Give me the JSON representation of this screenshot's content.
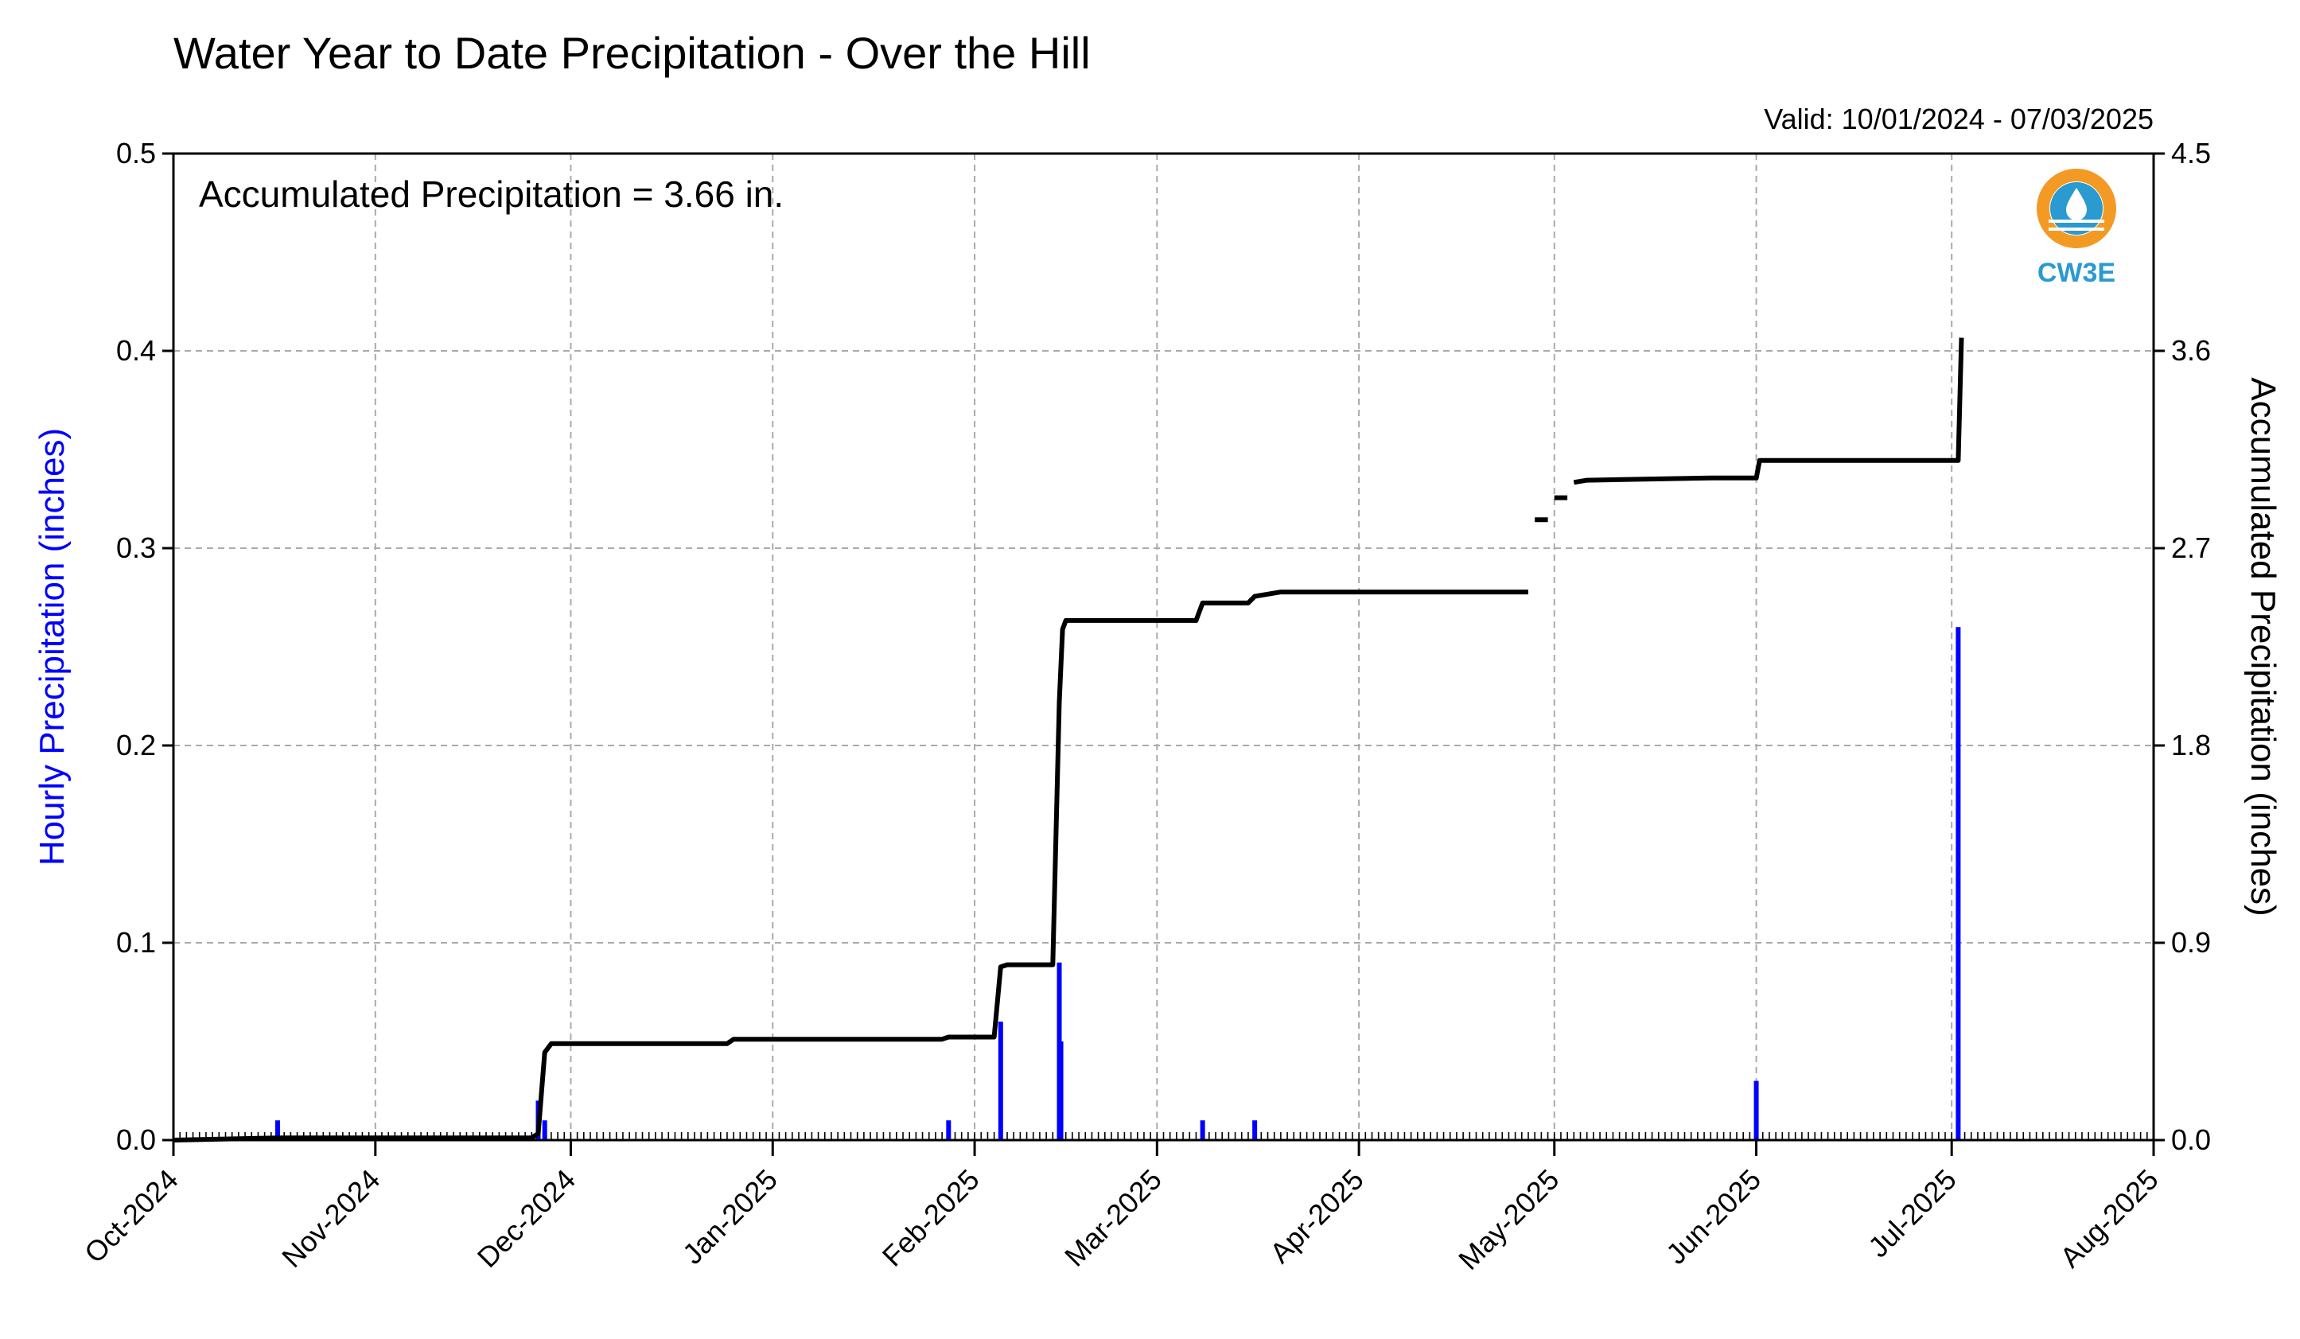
{
  "chart_data": {
    "type": "bar",
    "title": "Water Year to Date Precipitation - Over the Hill",
    "valid_text": "Valid: 10/01/2024 - 07/03/2025",
    "annotation": "Accumulated Precipitation = 3.66 in.",
    "logo_text": "CW3E",
    "ylabel_left": "Hourly Precipitation (inches)",
    "ylabel_right": "Accumulated Precipitation (inches)",
    "x_start": "2024-10-01",
    "x_end": "2025-08-01",
    "x_tick_labels": [
      "Oct-2024",
      "Nov-2024",
      "Dec-2024",
      "Jan-2025",
      "Feb-2025",
      "Mar-2025",
      "Apr-2025",
      "May-2025",
      "Jun-2025",
      "Jul-2025",
      "Aug-2025"
    ],
    "x_tick_dates": [
      "2024-10-01",
      "2024-11-01",
      "2024-12-01",
      "2025-01-01",
      "2025-02-01",
      "2025-03-01",
      "2025-04-01",
      "2025-05-01",
      "2025-06-01",
      "2025-07-01",
      "2025-08-01"
    ],
    "ylim_left": [
      0,
      0.5
    ],
    "ylim_right": [
      0,
      4.5
    ],
    "yticks_left": [
      "0.0",
      "0.1",
      "0.2",
      "0.3",
      "0.4",
      "0.5"
    ],
    "yticks_right": [
      "0.0",
      "0.9",
      "1.8",
      "2.7",
      "3.6",
      "4.5"
    ],
    "grid": true,
    "colors": {
      "hourly": "#0000ff",
      "accumulated": "#000000",
      "grid": "#aaaaaa",
      "logo_orange": "#f39a24",
      "logo_blue": "#2a9ad0"
    },
    "series": [
      {
        "name": "Hourly Precipitation",
        "axis": "left",
        "kind": "bar",
        "points": [
          [
            "2024-10-17",
            0.01
          ],
          [
            "2024-11-26",
            0.02
          ],
          [
            "2024-11-27",
            0.01
          ],
          [
            "2025-01-28",
            0.01
          ],
          [
            "2025-02-05",
            0.06
          ],
          [
            "2025-02-14",
            0.09
          ],
          [
            "2025-02-14T06:00",
            0.05
          ],
          [
            "2025-03-08",
            0.01
          ],
          [
            "2025-03-16",
            0.01
          ],
          [
            "2025-06-01",
            0.03
          ],
          [
            "2025-07-02",
            0.26
          ]
        ]
      },
      {
        "name": "Accumulated Precipitation",
        "axis": "right",
        "kind": "step",
        "segments": [
          [
            [
              "2024-10-01",
              0.0
            ],
            [
              "2024-10-17",
              0.01
            ],
            [
              "2024-11-25",
              0.01
            ],
            [
              "2024-11-26",
              0.03
            ],
            [
              "2024-11-27",
              0.4
            ],
            [
              "2024-11-28",
              0.44
            ],
            [
              "2024-12-10",
              0.44
            ],
            [
              "2024-12-25",
              0.44
            ],
            [
              "2024-12-26",
              0.46
            ],
            [
              "2025-01-27",
              0.46
            ],
            [
              "2025-01-28",
              0.47
            ],
            [
              "2025-02-04",
              0.47
            ],
            [
              "2025-02-05",
              0.79
            ],
            [
              "2025-02-06",
              0.8
            ],
            [
              "2025-02-13",
              0.8
            ],
            [
              "2025-02-14",
              2.0
            ],
            [
              "2025-02-14T12:00",
              2.33
            ],
            [
              "2025-02-15",
              2.37
            ],
            [
              "2025-03-07",
              2.37
            ],
            [
              "2025-03-08",
              2.45
            ],
            [
              "2025-03-15",
              2.45
            ],
            [
              "2025-03-16",
              2.48
            ],
            [
              "2025-03-20",
              2.5
            ],
            [
              "2025-04-27",
              2.5
            ]
          ],
          [
            [
              "2025-04-28",
              2.83
            ],
            [
              "2025-04-30",
              2.83
            ]
          ],
          [
            [
              "2025-05-01",
              2.93
            ],
            [
              "2025-05-03",
              2.93
            ]
          ],
          [
            [
              "2025-05-04",
              3.0
            ],
            [
              "2025-05-06",
              3.01
            ],
            [
              "2025-05-25",
              3.02
            ],
            [
              "2025-06-01",
              3.02
            ],
            [
              "2025-06-01T12:00",
              3.1
            ],
            [
              "2025-07-02",
              3.1
            ],
            [
              "2025-07-02T12:00",
              3.66
            ]
          ]
        ]
      }
    ]
  }
}
